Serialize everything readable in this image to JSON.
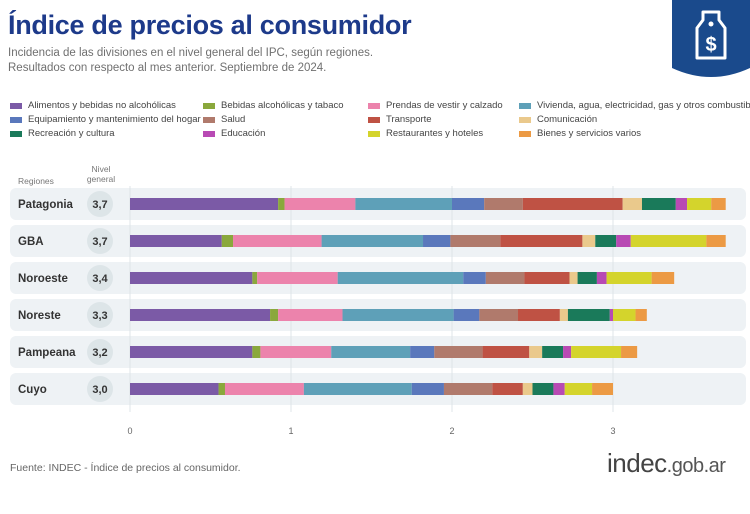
{
  "header": {
    "title": "Índice de precios al consumidor",
    "subtitle_line1": "Incidencia de las divisiones en el nivel general del IPC, según regiones.",
    "subtitle_line2": "Resultados con respecto al mes anterior. Septiembre de 2024."
  },
  "columns": {
    "regiones": "Regiones",
    "nivel_general_line1": "Nivel",
    "nivel_general_line2": "general"
  },
  "footer": {
    "source": "Fuente: INDEC - Índice de precios al consumidor.",
    "logo_main": "indec",
    "logo_suffix": ".gob.ar"
  },
  "colors": {
    "title": "#1d3a8a",
    "badge": "#1a4a8c",
    "bubble": "#dde5e8",
    "row_band": "#eef2f5"
  },
  "icons": {
    "badge": "price-tag-dollar-icon"
  },
  "chart_data": {
    "type": "bar",
    "orientation": "horizontal",
    "stacked": true,
    "xlim": [
      0,
      3.8
    ],
    "xticks": [
      "0",
      "1",
      "2",
      "3"
    ],
    "categories": [
      "Patagonia",
      "GBA",
      "Noroeste",
      "Noreste",
      "Pampeana",
      "Cuyo"
    ],
    "nivel_general": [
      "3,7",
      "3,7",
      "3,4",
      "3,3",
      "3,2",
      "3,0"
    ],
    "series": [
      {
        "name": "Alimentos y bebidas no alcohólicas",
        "color": "#7b5aa6",
        "values": [
          0.92,
          0.57,
          0.76,
          0.87,
          0.76,
          0.55
        ]
      },
      {
        "name": "Bebidas alcohólicas y tabaco",
        "color": "#8aa83c",
        "values": [
          0.04,
          0.07,
          0.03,
          0.05,
          0.05,
          0.04
        ]
      },
      {
        "name": "Prendas de vestir y calzado",
        "color": "#ec83ac",
        "values": [
          0.44,
          0.55,
          0.5,
          0.4,
          0.44,
          0.49
        ]
      },
      {
        "name": "Vivienda, agua, electricidad, gas y otros combustibles",
        "color": "#5ea0b8",
        "values": [
          0.6,
          0.63,
          0.78,
          0.69,
          0.49,
          0.67
        ]
      },
      {
        "name": "Equipamiento y mantenimiento del hogar",
        "color": "#5a78bc",
        "values": [
          0.2,
          0.17,
          0.14,
          0.16,
          0.15,
          0.2
        ]
      },
      {
        "name": "Salud",
        "color": "#b07a6c",
        "values": [
          0.24,
          0.31,
          0.24,
          0.24,
          0.3,
          0.3
        ]
      },
      {
        "name": "Transporte",
        "color": "#bf5244",
        "values": [
          0.62,
          0.51,
          0.28,
          0.26,
          0.29,
          0.19
        ]
      },
      {
        "name": "Comunicación",
        "color": "#eac98c",
        "values": [
          0.12,
          0.08,
          0.05,
          0.05,
          0.08,
          0.06
        ]
      },
      {
        "name": "Recreación y cultura",
        "color": "#1a7a5a",
        "values": [
          0.21,
          0.13,
          0.12,
          0.26,
          0.13,
          0.13
        ]
      },
      {
        "name": "Educación",
        "color": "#b84ab4",
        "values": [
          0.07,
          0.09,
          0.06,
          0.02,
          0.05,
          0.07
        ]
      },
      {
        "name": "Restaurantes y hoteles",
        "color": "#d4d42c",
        "values": [
          0.15,
          0.47,
          0.28,
          0.14,
          0.31,
          0.17
        ]
      },
      {
        "name": "Bienes y servicios varios",
        "color": "#ec9a44",
        "values": [
          0.09,
          0.12,
          0.14,
          0.07,
          0.1,
          0.13
        ]
      }
    ]
  }
}
